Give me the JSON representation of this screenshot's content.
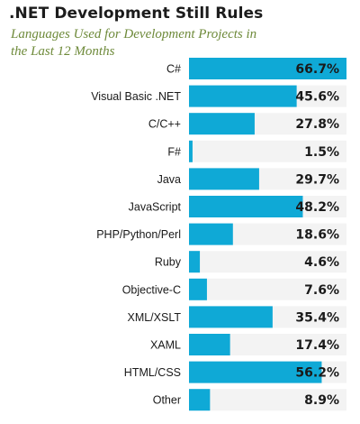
{
  "chart_data": {
    "type": "bar",
    "orientation": "horizontal",
    "title": ".NET Development Still Rules",
    "subtitle": "Languages Used for Development Projects in the Last 12 Months",
    "categories": [
      "C#",
      "Visual Basic .NET",
      "C/C++",
      "F#",
      "Java",
      "JavaScript",
      "PHP/Python/Perl",
      "Ruby",
      "Objective-C",
      "XML/XSLT",
      "XAML",
      "HTML/CSS",
      "Other"
    ],
    "values": [
      66.7,
      45.6,
      27.8,
      1.5,
      29.7,
      48.2,
      18.6,
      4.6,
      7.6,
      35.4,
      17.4,
      56.2,
      8.9
    ],
    "value_labels": [
      "66.7%",
      "45.6%",
      "27.8%",
      "1.5%",
      "29.7%",
      "48.2%",
      "18.6%",
      "4.6%",
      "7.6%",
      "35.4%",
      "17.4%",
      "56.2%",
      "8.9%"
    ],
    "xlim": [
      0,
      66.7
    ],
    "xlabel": "",
    "ylabel": "",
    "grid": false,
    "legend": "none",
    "colors": {
      "bar": "#0fa9d6",
      "track": "#f3f3f3",
      "title": "#1c1c1c",
      "subtitle": "#6e8a3a"
    }
  }
}
